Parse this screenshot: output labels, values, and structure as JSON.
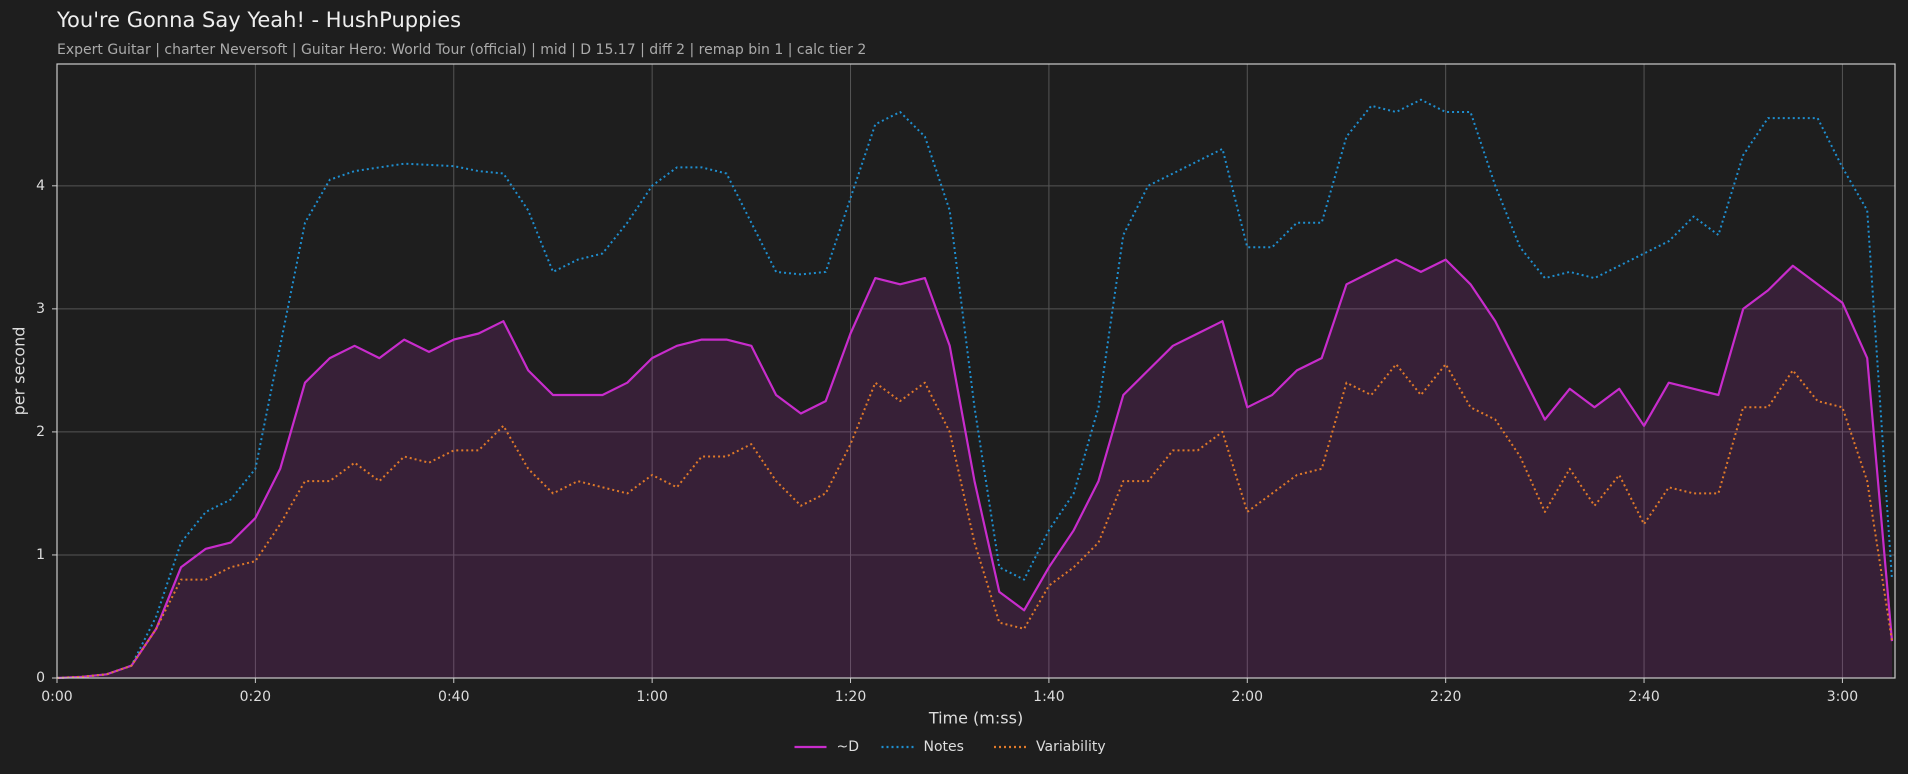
{
  "chart_data": {
    "type": "line",
    "title": "You're Gonna Say Yeah! - HushPuppies",
    "subtitle": "Expert Guitar  |  charter Neversoft  |  Guitar Hero: World Tour (official)  |  mid  |  D 15.17  |  diff 2  |  remap bin 1  |  calc tier 2",
    "xlabel": "Time (m:ss)",
    "ylabel": "per second",
    "x": [
      0,
      2.5,
      5,
      7.5,
      10,
      12.5,
      15,
      17.5,
      20,
      22.5,
      25,
      27.5,
      30,
      32.5,
      35,
      37.5,
      40,
      42.5,
      45,
      47.5,
      50,
      52.5,
      55,
      57.5,
      60,
      62.5,
      65,
      67.5,
      70,
      72.5,
      75,
      77.5,
      80,
      82.5,
      85,
      87.5,
      90,
      92.5,
      95,
      97.5,
      100,
      102.5,
      105,
      107.5,
      110,
      112.5,
      115,
      117.5,
      120,
      122.5,
      125,
      127.5,
      130,
      132.5,
      135,
      137.5,
      140,
      142.5,
      145,
      147.5,
      150,
      152.5,
      155,
      157.5,
      160,
      162.5,
      165,
      167.5,
      170,
      172.5,
      175,
      177.5,
      180,
      182.5,
      185
    ],
    "series": [
      {
        "name": "~D",
        "color": "#c82ccc",
        "linestyle": "solid",
        "fill": true,
        "values": [
          0,
          0.01,
          0.03,
          0.1,
          0.4,
          0.9,
          1.05,
          1.1,
          1.3,
          1.7,
          2.4,
          2.6,
          2.7,
          2.6,
          2.75,
          2.65,
          2.75,
          2.8,
          2.9,
          2.5,
          2.3,
          2.3,
          2.3,
          2.4,
          2.6,
          2.7,
          2.75,
          2.75,
          2.7,
          2.3,
          2.15,
          2.25,
          2.8,
          3.25,
          3.2,
          3.25,
          2.7,
          1.6,
          0.7,
          0.55,
          0.9,
          1.2,
          1.6,
          2.3,
          2.5,
          2.7,
          2.8,
          2.9,
          2.2,
          2.3,
          2.5,
          2.6,
          3.2,
          3.3,
          3.4,
          3.3,
          3.4,
          3.2,
          2.9,
          2.5,
          2.1,
          2.35,
          2.2,
          2.35,
          2.05,
          2.4,
          2.35,
          2.3,
          3.0,
          3.15,
          3.35,
          3.2,
          3.05,
          2.6,
          0.3
        ]
      },
      {
        "name": "Notes",
        "color": "#1f8fd0",
        "linestyle": "dotted",
        "fill": false,
        "values": [
          0,
          0.01,
          0.03,
          0.1,
          0.5,
          1.1,
          1.35,
          1.45,
          1.7,
          2.7,
          3.7,
          4.05,
          4.12,
          4.15,
          4.18,
          4.17,
          4.16,
          4.12,
          4.1,
          3.8,
          3.3,
          3.4,
          3.45,
          3.7,
          4.0,
          4.15,
          4.15,
          4.1,
          3.7,
          3.3,
          3.28,
          3.3,
          3.9,
          4.5,
          4.6,
          4.4,
          3.8,
          2.2,
          0.9,
          0.8,
          1.2,
          1.5,
          2.2,
          3.6,
          4.0,
          4.1,
          4.2,
          4.3,
          3.5,
          3.5,
          3.7,
          3.7,
          4.4,
          4.65,
          4.6,
          4.7,
          4.6,
          4.6,
          4.0,
          3.5,
          3.25,
          3.3,
          3.25,
          3.35,
          3.45,
          3.55,
          3.75,
          3.6,
          4.25,
          4.55,
          4.55,
          4.55,
          4.15,
          3.8,
          0.8
        ]
      },
      {
        "name": "Variability",
        "color": "#e07a2a",
        "linestyle": "dotted",
        "fill": false,
        "values": [
          0,
          0.01,
          0.03,
          0.1,
          0.4,
          0.8,
          0.8,
          0.9,
          0.95,
          1.25,
          1.6,
          1.6,
          1.75,
          1.6,
          1.8,
          1.75,
          1.85,
          1.85,
          2.05,
          1.7,
          1.5,
          1.6,
          1.55,
          1.5,
          1.65,
          1.55,
          1.8,
          1.8,
          1.9,
          1.6,
          1.4,
          1.5,
          1.9,
          2.4,
          2.25,
          2.4,
          2.0,
          1.1,
          0.45,
          0.4,
          0.75,
          0.9,
          1.1,
          1.6,
          1.6,
          1.85,
          1.85,
          2.0,
          1.35,
          1.5,
          1.65,
          1.7,
          2.4,
          2.3,
          2.55,
          2.3,
          2.55,
          2.2,
          2.1,
          1.8,
          1.35,
          1.7,
          1.4,
          1.65,
          1.25,
          1.55,
          1.5,
          1.5,
          2.2,
          2.2,
          2.5,
          2.25,
          2.2,
          1.6,
          0.3
        ]
      }
    ],
    "xlim": [
      0,
      185.3
    ],
    "ylim": [
      0,
      4.99
    ],
    "xticks": [
      {
        "value": 0,
        "label": "0:00"
      },
      {
        "value": 20,
        "label": "0:20"
      },
      {
        "value": 40,
        "label": "0:40"
      },
      {
        "value": 60,
        "label": "1:00"
      },
      {
        "value": 80,
        "label": "1:20"
      },
      {
        "value": 100,
        "label": "1:40"
      },
      {
        "value": 120,
        "label": "2:00"
      },
      {
        "value": 140,
        "label": "2:20"
      },
      {
        "value": 160,
        "label": "2:40"
      },
      {
        "value": 180,
        "label": "3:00"
      }
    ],
    "yticks": [
      0,
      1,
      2,
      3,
      4
    ],
    "grid": true,
    "legend": "bottom"
  }
}
